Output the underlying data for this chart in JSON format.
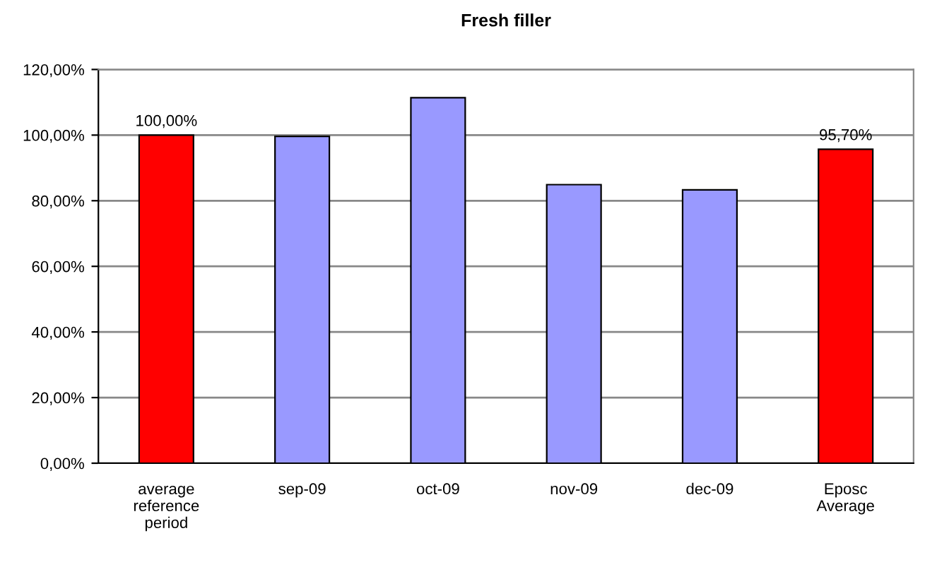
{
  "chart_data": {
    "type": "bar",
    "title": "Fresh filler",
    "categories": [
      "average\nreference\nperiod",
      "sep-09",
      "oct-09",
      "nov-09",
      "dec-09",
      "Eposc\nAverage"
    ],
    "values": [
      100,
      99.6,
      111.4,
      84.9,
      83.3,
      95.7
    ],
    "colors": [
      "#ff0000",
      "#9999ff",
      "#9999ff",
      "#9999ff",
      "#9999ff",
      "#ff0000"
    ],
    "value_labels": [
      "100,00%",
      null,
      null,
      null,
      null,
      "95,70%"
    ],
    "ylim": [
      0,
      120
    ],
    "yticks": [
      {
        "value": 0,
        "label": "0,00%"
      },
      {
        "value": 20,
        "label": "20,00%"
      },
      {
        "value": 40,
        "label": "40,00%"
      },
      {
        "value": 60,
        "label": "60,00%"
      },
      {
        "value": 80,
        "label": "80,00%"
      },
      {
        "value": 100,
        "label": "100,00%"
      },
      {
        "value": 120,
        "label": "120,00%"
      }
    ],
    "grid": "y"
  }
}
